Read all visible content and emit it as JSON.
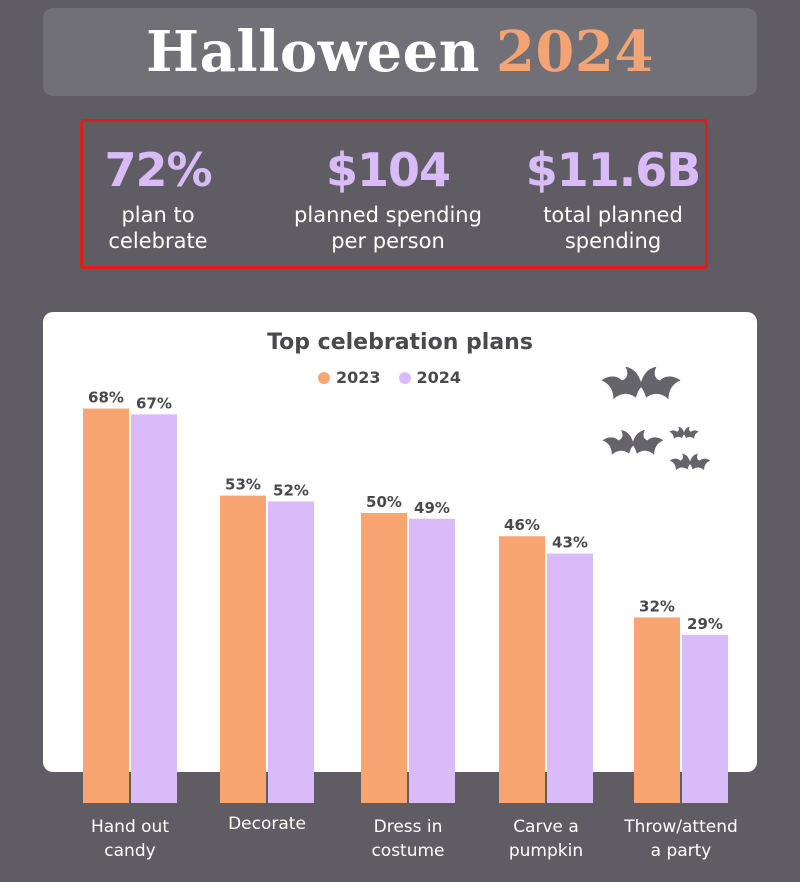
{
  "header": {
    "title_word": "Halloween",
    "title_year": "2024"
  },
  "stats": [
    {
      "value": "72%",
      "label": "plan to\ncelebrate"
    },
    {
      "value": "$104",
      "label": "planned spending\nper person"
    },
    {
      "value": "$11.6B",
      "label": "total planned\nspending"
    }
  ],
  "colors": {
    "bg": "#5f5c63",
    "orange": "#f8a572",
    "purple": "#d9bbf9",
    "box_border": "#e21b1b"
  },
  "chart_data": {
    "type": "bar",
    "title": "Top celebration plans",
    "categories": [
      "Hand out\ncandy",
      "Decorate",
      "Dress in\ncostume",
      "Carve a\npumpkin",
      "Throw/attend\na party"
    ],
    "series": [
      {
        "name": "2023",
        "values": [
          68,
          53,
          50,
          46,
          32
        ],
        "labels": [
          "68%",
          "53%",
          "50%",
          "46%",
          "32%"
        ],
        "color": "#f8a572"
      },
      {
        "name": "2024",
        "values": [
          67,
          52,
          49,
          43,
          29
        ],
        "labels": [
          "67%",
          "52%",
          "49%",
          "43%",
          "29%"
        ],
        "color": "#d9bbf9"
      }
    ],
    "legend": "top-center",
    "grid": false
  }
}
